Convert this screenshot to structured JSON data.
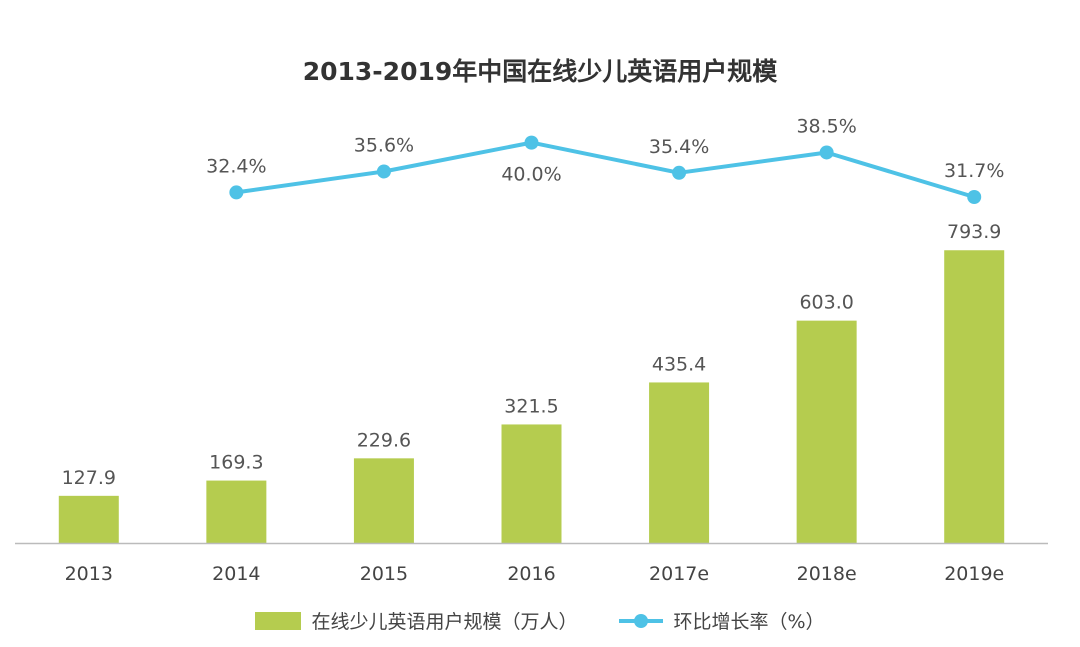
{
  "chart_data": {
    "type": "bar",
    "title": "2013-2019年中国在线少儿英语用户规模",
    "categories": [
      "2013",
      "2014",
      "2015",
      "2016",
      "2017e",
      "2018e",
      "2019e"
    ],
    "series": [
      {
        "name": "在线少儿英语用户规模（万人）",
        "type": "bar",
        "color": "#b5cc4f",
        "values": [
          127.9,
          169.3,
          229.6,
          321.5,
          435.4,
          603.0,
          793.9
        ],
        "labels": [
          "127.9",
          "169.3",
          "229.6",
          "321.5",
          "435.4",
          "603.0",
          "793.9"
        ]
      },
      {
        "name": "环比增长率（%）",
        "type": "line",
        "color": "#4ec2e6",
        "values": [
          null,
          32.4,
          35.6,
          40.0,
          35.4,
          38.5,
          31.7
        ],
        "labels": [
          "",
          "32.4%",
          "35.6%",
          "40.0%",
          "35.4%",
          "38.5%",
          "31.7%"
        ]
      }
    ],
    "legend_position": "bottom",
    "grid": false
  }
}
